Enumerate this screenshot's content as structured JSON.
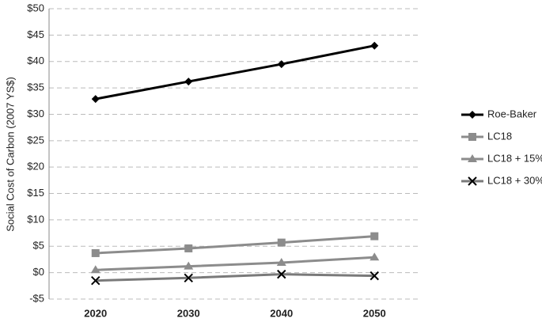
{
  "chart_data": {
    "type": "line",
    "y_label": "Social Cost of Carbon (2007 YS$)",
    "categories": [
      "2020",
      "2030",
      "2040",
      "2050"
    ],
    "series": [
      {
        "name": "Roe-Baker",
        "color": "#000000",
        "marker": "diamond",
        "values": [
          32.9,
          36.2,
          39.5,
          43.0
        ]
      },
      {
        "name": "LC18",
        "color": "#8c8c8c",
        "marker": "square",
        "values": [
          3.7,
          4.6,
          5.7,
          6.9
        ]
      },
      {
        "name": "LC18 + 15%",
        "color": "#8c8c8c",
        "marker": "triangle",
        "values": [
          0.5,
          1.2,
          1.9,
          2.9
        ]
      },
      {
        "name": "LC18 + 30%",
        "color": "#7a7a7a",
        "marker": "x",
        "values": [
          -1.5,
          -1.0,
          -0.3,
          -0.6
        ]
      }
    ],
    "ylim": [
      -5,
      50
    ],
    "yticks": [
      {
        "value": -5,
        "label": "-$5"
      },
      {
        "value": 0,
        "label": "$0"
      },
      {
        "value": 5,
        "label": "$5"
      },
      {
        "value": 10,
        "label": "$10"
      },
      {
        "value": 15,
        "label": "$15"
      },
      {
        "value": 20,
        "label": "$20"
      },
      {
        "value": 25,
        "label": "$25"
      },
      {
        "value": 30,
        "label": "$30"
      },
      {
        "value": 35,
        "label": "$35"
      },
      {
        "value": 40,
        "label": "$40"
      },
      {
        "value": 45,
        "label": "$45"
      },
      {
        "value": 50,
        "label": "$50"
      }
    ],
    "grid": true,
    "legend": "right"
  }
}
